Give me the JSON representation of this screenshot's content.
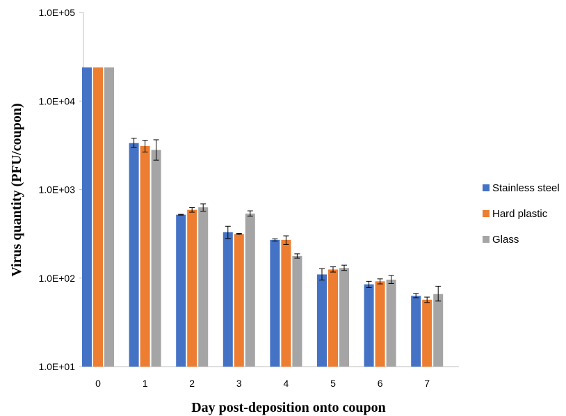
{
  "chart_data": {
    "type": "bar",
    "title": "",
    "xlabel": "Day post-deposition onto coupon",
    "ylabel": "Virus quantity (PFU/coupon)",
    "yscale": "log",
    "ylim": [
      10,
      100000
    ],
    "ytick_values": [
      10,
      100,
      1000,
      10000,
      100000
    ],
    "ytick_labels": [
      "1.0E+01",
      "1.0E+02",
      "1.0E+03",
      "1.0E+04",
      "1.0E+05"
    ],
    "categories": [
      "0",
      "1",
      "2",
      "3",
      "4",
      "5",
      "6",
      "7"
    ],
    "grid": false,
    "legend_position": "right",
    "series": [
      {
        "name": "Stainless steel",
        "color": "#4472C4",
        "values": [
          24000,
          3350,
          520,
          330,
          270,
          110,
          85,
          63
        ],
        "error_low": [
          24000,
          3000,
          515,
          280,
          262,
          95,
          78,
          60
        ],
        "error_high": [
          24000,
          3800,
          525,
          385,
          278,
          128,
          92,
          67
        ]
      },
      {
        "name": "Hard plastic",
        "color": "#ED7D31",
        "values": [
          24000,
          3100,
          590,
          315,
          270,
          125,
          92,
          57
        ],
        "error_low": [
          24000,
          2650,
          555,
          310,
          240,
          117,
          86,
          53
        ],
        "error_high": [
          24000,
          3600,
          625,
          320,
          300,
          134,
          98,
          61
        ]
      },
      {
        "name": "Glass",
        "color": "#A5A5A5",
        "values": [
          24000,
          2800,
          630,
          535,
          178,
          130,
          96,
          66
        ],
        "error_low": [
          24000,
          2150,
          570,
          500,
          168,
          122,
          87,
          55
        ],
        "error_high": [
          24000,
          3650,
          690,
          575,
          188,
          140,
          107,
          81
        ]
      }
    ]
  }
}
